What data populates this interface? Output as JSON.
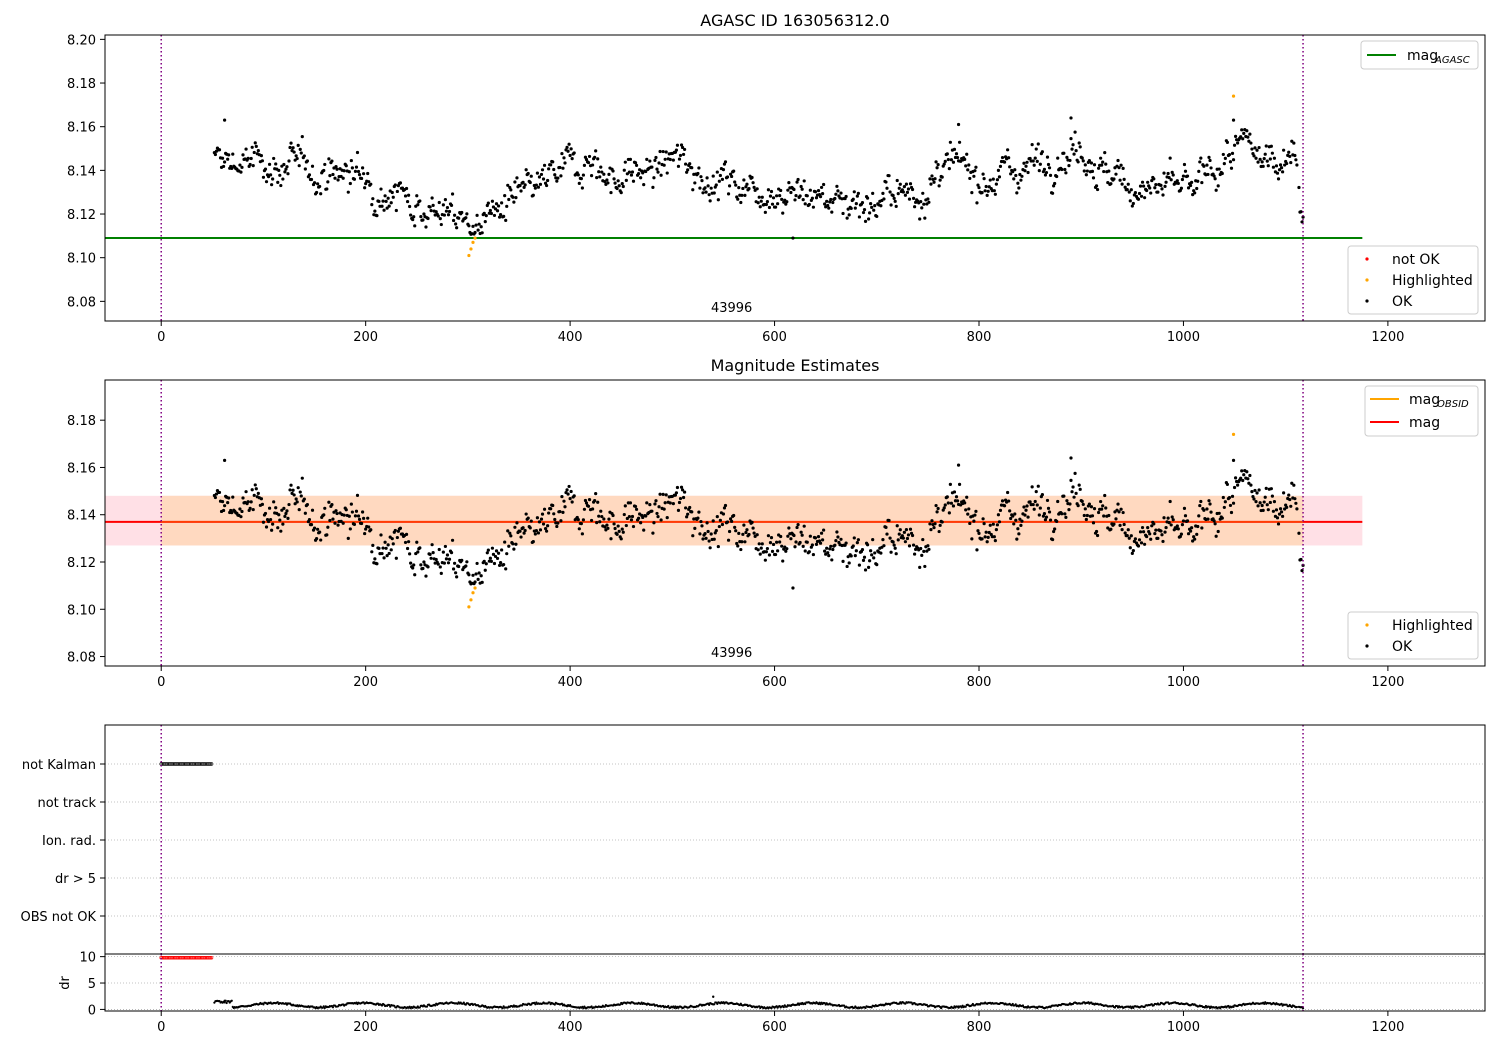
{
  "colors": {
    "ok": "#000000",
    "highlighted": "#ffa500",
    "not_ok": "#ff0000",
    "mag_agasc_line": "#008000",
    "mag_obsid_line": "#ffa500",
    "mag_line": "#ff0000",
    "band_outer": "#ffe0e6",
    "band_inner": "#ffd9c0",
    "obs_boundary": "#800080"
  },
  "chart_data": [
    {
      "type": "scatter",
      "title": "AGASC ID 163056312.0",
      "xlim": [
        -55,
        1295
      ],
      "ylim": [
        8.071,
        8.202
      ],
      "xticks": [
        0,
        200,
        400,
        600,
        800,
        1000,
        1200
      ],
      "yticks": [
        8.08,
        8.1,
        8.12,
        8.14,
        8.16,
        8.18,
        8.2
      ],
      "ytick_labels": [
        "8.08",
        "8.10",
        "8.12",
        "8.14",
        "8.16",
        "8.18",
        "8.20"
      ],
      "obs_boundaries": [
        0,
        1117
      ],
      "obsid_label": {
        "text": "43996",
        "x": 558
      },
      "mag_agasc": 8.109,
      "mag_agasc_x_range": [
        -55,
        1175
      ],
      "legend_lines": [
        {
          "label": "mag",
          "sub": "AGASC",
          "color": "#008000"
        }
      ],
      "legend_points": [
        {
          "label": "not OK",
          "color": "#ff0000"
        },
        {
          "label": "Highlighted",
          "color": "#ffa500"
        },
        {
          "label": "OK",
          "color": "#000000"
        }
      ],
      "highlighted_points": [
        [
          301,
          8.101
        ],
        [
          303,
          8.104
        ],
        [
          305,
          8.107
        ],
        [
          307,
          8.109
        ],
        [
          1049,
          8.174
        ]
      ],
      "series_ref": "shared_series"
    },
    {
      "type": "scatter",
      "title": "Magnitude Estimates",
      "xlim": [
        -55,
        1295
      ],
      "ylim": [
        8.076,
        8.197
      ],
      "xticks": [
        0,
        200,
        400,
        600,
        800,
        1000,
        1200
      ],
      "yticks": [
        8.08,
        8.1,
        8.12,
        8.14,
        8.16,
        8.18
      ],
      "ytick_labels": [
        "8.08",
        "8.10",
        "8.12",
        "8.14",
        "8.16",
        "8.18"
      ],
      "obs_boundaries": [
        0,
        1117
      ],
      "obsid_label": {
        "text": "43996",
        "x": 558
      },
      "mag_obsid": 8.137,
      "mag": 8.137,
      "band_outer": [
        8.127,
        8.148
      ],
      "band_inner": [
        8.127,
        8.148
      ],
      "band_inner_x_range": [
        0,
        1117
      ],
      "band_outer_x_range": [
        -55,
        1175
      ],
      "legend_lines": [
        {
          "label": "mag",
          "sub": "OBSID",
          "color": "#ffa500"
        },
        {
          "label": "mag",
          "sub": "",
          "color": "#ff0000"
        }
      ],
      "legend_points": [
        {
          "label": "Highlighted",
          "color": "#ffa500"
        },
        {
          "label": "OK",
          "color": "#000000"
        }
      ],
      "highlighted_points": [
        [
          301,
          8.101
        ],
        [
          303,
          8.104
        ],
        [
          305,
          8.107
        ],
        [
          307,
          8.109
        ],
        [
          1049,
          8.174
        ]
      ],
      "series_ref": "shared_series"
    },
    {
      "type": "scatter",
      "title": "",
      "xlim": [
        -55,
        1295
      ],
      "category_labels": [
        "not Kalman",
        "not track",
        "Ion. rad.",
        "dr > 5",
        "OBS not OK"
      ],
      "flag_ranges": [
        {
          "category": "not Kalman",
          "x_range": [
            0,
            50
          ]
        }
      ],
      "obs_boundaries": [
        0,
        1117
      ]
    },
    {
      "type": "scatter",
      "title": "",
      "xlim": [
        -55,
        1295
      ],
      "ylim": [
        -0.3,
        10.5
      ],
      "ylabel": "dr",
      "yticks": [
        0,
        5,
        10
      ],
      "ytick_labels": [
        "0",
        "5",
        "10"
      ],
      "xticks": [
        0,
        200,
        400,
        600,
        800,
        1000,
        1200
      ],
      "flagged_dr": {
        "x_range": [
          0,
          50
        ],
        "value": 9.8
      },
      "dr_range": [
        0.2,
        1.6
      ],
      "dr_outlier": [
        540,
        2.4
      ],
      "obs_boundaries": [
        0,
        1117
      ]
    }
  ],
  "shared_series": {
    "x_range": [
      52,
      1117
    ],
    "n_points": 1066,
    "gap": [
      1111,
      1113
    ],
    "trend_knots": [
      [
        52,
        8.144
      ],
      [
        100,
        8.143
      ],
      [
        150,
        8.14
      ],
      [
        190,
        8.138
      ],
      [
        230,
        8.13
      ],
      [
        270,
        8.122
      ],
      [
        305,
        8.115
      ],
      [
        330,
        8.122
      ],
      [
        360,
        8.128
      ],
      [
        390,
        8.138
      ],
      [
        420,
        8.147
      ],
      [
        440,
        8.136
      ],
      [
        480,
        8.14
      ],
      [
        510,
        8.145
      ],
      [
        540,
        8.136
      ],
      [
        580,
        8.133
      ],
      [
        620,
        8.13
      ],
      [
        660,
        8.127
      ],
      [
        700,
        8.126
      ],
      [
        740,
        8.13
      ],
      [
        770,
        8.14
      ],
      [
        820,
        8.138
      ],
      [
        860,
        8.145
      ],
      [
        900,
        8.152
      ],
      [
        930,
        8.135
      ],
      [
        970,
        8.132
      ],
      [
        1010,
        8.13
      ],
      [
        1040,
        8.145
      ],
      [
        1060,
        8.15
      ],
      [
        1080,
        8.144
      ],
      [
        1110,
        8.152
      ],
      [
        1114,
        8.124
      ],
      [
        1117,
        8.124
      ]
    ],
    "scatter_amplitude": 0.006,
    "extra_points": [
      [
        618,
        8.109
      ],
      [
        1049,
        8.163
      ],
      [
        890,
        8.164
      ],
      [
        780,
        8.161
      ],
      [
        62,
        8.163
      ]
    ]
  }
}
